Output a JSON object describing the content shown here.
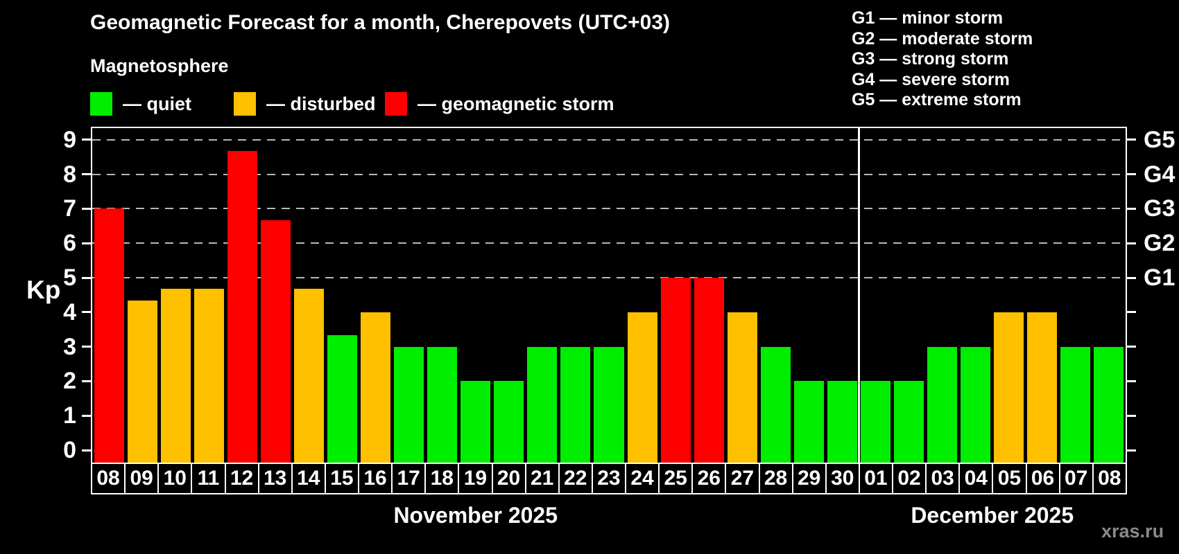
{
  "header": {
    "title": "Geomagnetic Forecast for a month, Cherepovets (UTC+03)",
    "subtitle": "Magnetosphere"
  },
  "legend": {
    "items": [
      {
        "key": "quiet",
        "label": "— quiet",
        "color": "#00ee00"
      },
      {
        "key": "disturbed",
        "label": "— disturbed",
        "color": "#ffc000"
      },
      {
        "key": "storm",
        "label": "— geomagnetic storm",
        "color": "#ff0000"
      }
    ]
  },
  "storm_legend": {
    "items": [
      "G1 — minor storm",
      "G2 — moderate storm",
      "G3 — strong storm",
      "G4 — severe storm",
      "G5 — extreme storm"
    ]
  },
  "watermark": "xras.ru",
  "chart_data": {
    "type": "bar",
    "title": "Geomagnetic Forecast for a month, Cherepovets (UTC+03)",
    "ylabel": "Kp",
    "ylim": [
      0,
      9
    ],
    "yticks": [
      0,
      1,
      2,
      3,
      4,
      5,
      6,
      7,
      8,
      9
    ],
    "gridlines_at": [
      5,
      6,
      7,
      8,
      9
    ],
    "grid_style": "dashed-horizontal",
    "right_axis": [
      {
        "value": 5,
        "label": "G1"
      },
      {
        "value": 6,
        "label": "G2"
      },
      {
        "value": 7,
        "label": "G3"
      },
      {
        "value": 8,
        "label": "G4"
      },
      {
        "value": 9,
        "label": "G5"
      }
    ],
    "status_colors": {
      "quiet": "#00ee00",
      "disturbed": "#ffc000",
      "storm": "#ff0000"
    },
    "months": [
      {
        "label": "November 2025",
        "days": 23
      },
      {
        "label": "December 2025",
        "days": 8
      }
    ],
    "bars": [
      {
        "day": "08",
        "value": 7.0,
        "status": "storm"
      },
      {
        "day": "09",
        "value": 4.33,
        "status": "disturbed"
      },
      {
        "day": "10",
        "value": 4.67,
        "status": "disturbed"
      },
      {
        "day": "11",
        "value": 4.67,
        "status": "disturbed"
      },
      {
        "day": "12",
        "value": 8.67,
        "status": "storm"
      },
      {
        "day": "13",
        "value": 6.67,
        "status": "storm"
      },
      {
        "day": "14",
        "value": 4.67,
        "status": "disturbed"
      },
      {
        "day": "15",
        "value": 3.33,
        "status": "quiet"
      },
      {
        "day": "16",
        "value": 4.0,
        "status": "disturbed"
      },
      {
        "day": "17",
        "value": 3.0,
        "status": "quiet"
      },
      {
        "day": "18",
        "value": 3.0,
        "status": "quiet"
      },
      {
        "day": "19",
        "value": 2.0,
        "status": "quiet"
      },
      {
        "day": "20",
        "value": 2.0,
        "status": "quiet"
      },
      {
        "day": "21",
        "value": 3.0,
        "status": "quiet"
      },
      {
        "day": "22",
        "value": 3.0,
        "status": "quiet"
      },
      {
        "day": "23",
        "value": 3.0,
        "status": "quiet"
      },
      {
        "day": "24",
        "value": 4.0,
        "status": "disturbed"
      },
      {
        "day": "25",
        "value": 5.0,
        "status": "storm"
      },
      {
        "day": "26",
        "value": 5.0,
        "status": "storm"
      },
      {
        "day": "27",
        "value": 4.0,
        "status": "disturbed"
      },
      {
        "day": "28",
        "value": 3.0,
        "status": "quiet"
      },
      {
        "day": "29",
        "value": 2.0,
        "status": "quiet"
      },
      {
        "day": "30",
        "value": 2.0,
        "status": "quiet"
      },
      {
        "day": "01",
        "value": 2.0,
        "status": "quiet"
      },
      {
        "day": "02",
        "value": 2.0,
        "status": "quiet"
      },
      {
        "day": "03",
        "value": 3.0,
        "status": "quiet"
      },
      {
        "day": "04",
        "value": 3.0,
        "status": "quiet"
      },
      {
        "day": "05",
        "value": 4.0,
        "status": "disturbed"
      },
      {
        "day": "06",
        "value": 4.0,
        "status": "disturbed"
      },
      {
        "day": "07",
        "value": 3.0,
        "status": "quiet"
      },
      {
        "day": "08",
        "value": 3.0,
        "status": "quiet"
      }
    ]
  }
}
